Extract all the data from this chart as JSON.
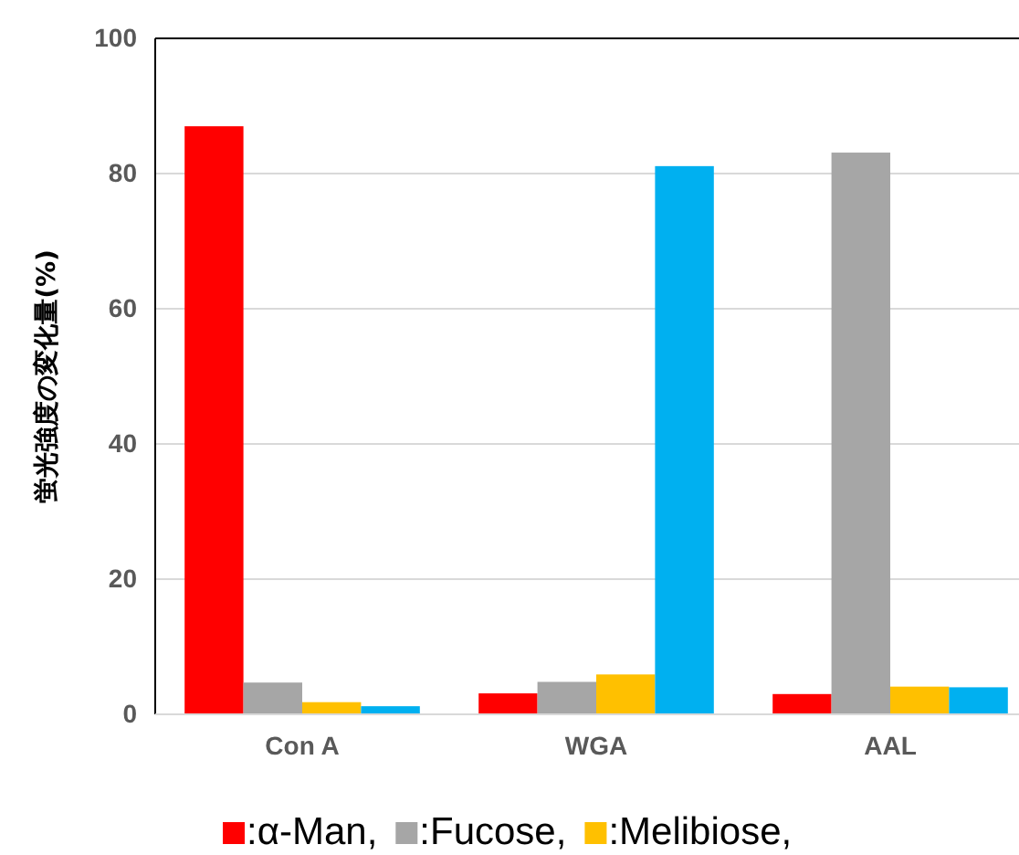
{
  "chart_data": {
    "type": "bar",
    "ylabel": "蛍光強度の変化量(%)",
    "categories": [
      "Con A",
      "WGA",
      "AAL"
    ],
    "series": [
      {
        "name": ":α-Man,",
        "color": "#ff0000",
        "values": [
          87,
          3.1,
          3
        ]
      },
      {
        "name": ":Fucose,",
        "color": "#a6a6a6",
        "values": [
          4.7,
          4.8,
          83.1
        ]
      },
      {
        "name": ":Melibiose,",
        "color": "#ffc000",
        "values": [
          1.8,
          5.9,
          4.1
        ]
      },
      {
        "color": "#00b0f0",
        "values": [
          1.2,
          81.1,
          4
        ]
      }
    ],
    "ylim": [
      0,
      100
    ],
    "yticks": [
      0,
      20,
      40,
      60,
      80,
      100
    ],
    "grid": "y",
    "legend": "bottom"
  }
}
